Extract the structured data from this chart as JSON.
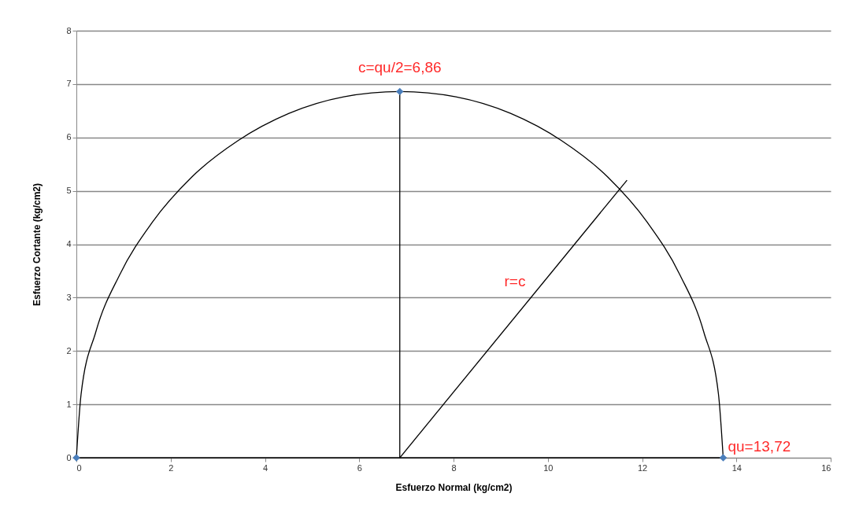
{
  "chart_data": {
    "type": "line",
    "xlabel": "Esfuerzo Normal (kg/cm2)",
    "ylabel": "Esfuerzo Cortante (kg/cm2)",
    "xlim": [
      0,
      16
    ],
    "ylim": [
      0,
      8
    ],
    "xticks": [
      0,
      2,
      4,
      6,
      8,
      10,
      12,
      14,
      16
    ],
    "yticks": [
      0,
      1,
      2,
      3,
      4,
      5,
      6,
      7,
      8
    ],
    "grid": "y",
    "series": [
      {
        "color": "#000000",
        "marker": "none",
        "x": [
          0,
          0.1,
          0.41,
          0.92,
          1.61,
          2.45,
          3.43,
          4.51,
          5.67,
          6.86,
          8.05,
          9.21,
          10.29,
          11.27,
          12.11,
          12.8,
          13.31,
          13.62,
          13.72
        ],
        "values": [
          0,
          1.19,
          2.35,
          3.43,
          4.41,
          5.26,
          5.94,
          6.45,
          6.76,
          6.86,
          6.76,
          6.45,
          5.94,
          5.26,
          4.41,
          3.43,
          2.35,
          1.19,
          0
        ]
      },
      {
        "color": "#000000",
        "marker": "none",
        "x": [
          0,
          13.72
        ],
        "values": [
          0,
          0
        ]
      },
      {
        "color": "#000000",
        "marker": "none",
        "x": [
          6.86,
          6.86
        ],
        "values": [
          0,
          6.86
        ]
      },
      {
        "color": "#000000",
        "marker": "none",
        "x": [
          6.86,
          11.68
        ],
        "values": [
          0,
          5.2
        ]
      },
      {
        "type": "scatter",
        "color": "#4a7ebb",
        "marker": "diamond",
        "x": [
          0,
          6.86,
          13.72
        ],
        "values": [
          0,
          6.86,
          0
        ]
      }
    ],
    "annotations": [
      {
        "text": "c=qu/2=6,86",
        "x": 6.86,
        "y": 6.86
      },
      {
        "text": "qu=13,72",
        "x": 13.72,
        "y": 0
      },
      "r=c"
    ]
  }
}
